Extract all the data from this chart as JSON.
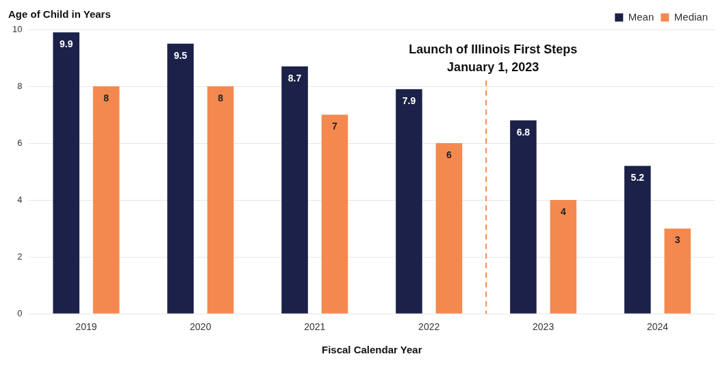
{
  "chart_data": {
    "type": "bar",
    "xlabel": "Fiscal Calendar Year",
    "ylabel": "Age of Child in Years",
    "categories": [
      "2019",
      "2020",
      "2021",
      "2022",
      "2023",
      "2024"
    ],
    "series": [
      {
        "name": "Mean",
        "color": "#1b2148",
        "values": [
          9.9,
          9.5,
          8.7,
          7.9,
          6.8,
          5.2
        ]
      },
      {
        "name": "Median",
        "color": "#f4894f",
        "values": [
          8,
          8,
          7,
          6,
          4,
          3
        ]
      }
    ],
    "ylim": [
      0,
      10
    ],
    "yticks": [
      0,
      2,
      4,
      6,
      8,
      10
    ],
    "grid": "y",
    "legend": "top right",
    "data_labels": true,
    "ref_lines": [
      {
        "axis": "x",
        "value": "2023",
        "label": "Launch of Illinois First Steps\nJanuary 1, 2023",
        "color": "#f4894f",
        "line_style": "dashed"
      }
    ]
  }
}
